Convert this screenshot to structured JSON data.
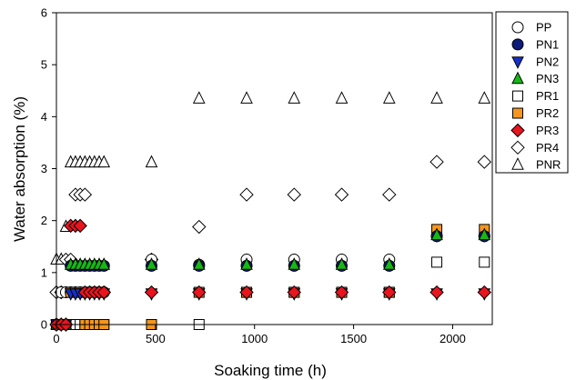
{
  "chart_data": {
    "type": "scatter",
    "xlabel": "Soaking time (h)",
    "ylabel": "Water absorption (%)",
    "xlim": [
      0,
      2200
    ],
    "ylim": [
      0,
      6
    ],
    "xticks": [
      "0",
      "500",
      "1000",
      "1500",
      "2000"
    ],
    "xtick_values": [
      0,
      500,
      1000,
      1500,
      2000
    ],
    "yticks": [
      "0",
      "1",
      "2",
      "3",
      "4",
      "5",
      "6"
    ],
    "ytick_values": [
      0,
      1,
      2,
      3,
      4,
      5,
      6
    ],
    "grid": false,
    "legend_position": "top-right, outside plot",
    "series": [
      {
        "name": "PP",
        "marker": "circle-open",
        "color": "#ffffff",
        "x": [
          0,
          24,
          48,
          72,
          96,
          120,
          144,
          168,
          192,
          216,
          240,
          480,
          720,
          960,
          1200,
          1440,
          1680,
          1920,
          2160
        ],
        "y": [
          0,
          0.62,
          0.62,
          0.62,
          0.62,
          0.62,
          0.62,
          0.62,
          0.62,
          0.62,
          0.62,
          1.25,
          1.15,
          1.25,
          1.25,
          1.25,
          1.25,
          1.7,
          1.7
        ]
      },
      {
        "name": "PN1",
        "marker": "circle-filled",
        "color": "#0d1b7a",
        "x": [
          0,
          24,
          48,
          72,
          96,
          120,
          144,
          168,
          192,
          216,
          240,
          480,
          720,
          960,
          1200,
          1440,
          1680,
          1920,
          2160
        ],
        "y": [
          0,
          0,
          0,
          1.13,
          1.13,
          1.13,
          1.13,
          1.13,
          1.13,
          1.13,
          1.13,
          1.13,
          1.13,
          1.13,
          1.13,
          1.13,
          1.13,
          1.7,
          1.7
        ]
      },
      {
        "name": "PN2",
        "marker": "triangle-down",
        "color": "#1530c8",
        "x": [
          0,
          24,
          48,
          72,
          96,
          120,
          144,
          168,
          192,
          216,
          240,
          480,
          720,
          960,
          1200,
          1440,
          1680,
          1920,
          2160
        ],
        "y": [
          0,
          0,
          0,
          0.6,
          0.6,
          0.6,
          0.6,
          0.6,
          0.6,
          0.6,
          0.6,
          0.6,
          0.6,
          0.6,
          0.6,
          0.6,
          0.6,
          0.6,
          0.6
        ]
      },
      {
        "name": "PN3",
        "marker": "triangle-up",
        "color": "#16b816",
        "x": [
          0,
          24,
          48,
          72,
          96,
          120,
          144,
          168,
          192,
          216,
          240,
          480,
          720,
          960,
          1200,
          1440,
          1680,
          1920,
          2160
        ],
        "y": [
          0,
          0,
          0,
          1.15,
          1.15,
          1.15,
          1.15,
          1.15,
          1.15,
          1.15,
          1.15,
          1.15,
          1.15,
          1.15,
          1.15,
          1.15,
          1.15,
          1.72,
          1.72
        ]
      },
      {
        "name": "PR1",
        "marker": "square-open",
        "color": "#ffffff",
        "x": [
          0,
          24,
          48,
          72,
          96,
          120,
          144,
          168,
          192,
          216,
          240,
          480,
          720,
          960,
          1200,
          1440,
          1680,
          1920,
          2160
        ],
        "y": [
          0,
          0,
          0,
          0,
          0,
          0,
          0,
          0,
          0,
          0,
          0,
          0,
          0,
          0.62,
          0.62,
          0.62,
          0.62,
          1.2,
          1.2
        ]
      },
      {
        "name": "PR2",
        "marker": "square-filled",
        "color": "#f5961e",
        "x": [
          0,
          24,
          48,
          72,
          96,
          120,
          144,
          168,
          192,
          216,
          240,
          480,
          720,
          960,
          1200,
          1440,
          1680,
          1920,
          2160
        ],
        "y": [
          0,
          0,
          0,
          0.62,
          0.62,
          0.62,
          0,
          0,
          0,
          0,
          0,
          0,
          0.62,
          0.62,
          0.62,
          0.62,
          0.62,
          1.83,
          1.83
        ]
      },
      {
        "name": "PR3",
        "marker": "diamond-filled",
        "color": "#e8141e",
        "x": [
          0,
          24,
          48,
          72,
          96,
          120,
          144,
          168,
          192,
          216,
          240,
          480,
          720,
          960,
          1200,
          1440,
          1680,
          1920,
          2160
        ],
        "y": [
          0,
          0,
          0,
          1.9,
          1.9,
          1.9,
          0.62,
          0.62,
          0.62,
          0.62,
          0.62,
          0.62,
          0.62,
          0.62,
          0.62,
          0.62,
          0.62,
          0.62,
          0.62
        ]
      },
      {
        "name": "PR4",
        "marker": "diamond-open",
        "color": "#ffffff",
        "x": [
          0,
          24,
          48,
          72,
          96,
          120,
          144,
          168,
          192,
          216,
          240,
          480,
          720,
          960,
          1200,
          1440,
          1680,
          1920,
          2160
        ],
        "y": [
          0.62,
          0.62,
          1.25,
          1.25,
          2.5,
          2.5,
          2.5,
          0.62,
          0.62,
          0.62,
          0.62,
          1.25,
          1.88,
          2.5,
          2.5,
          2.5,
          2.5,
          3.13,
          3.13
        ]
      },
      {
        "name": "PNR",
        "marker": "triangle-up-open",
        "color": "#ffffff",
        "x": [
          0,
          24,
          48,
          72,
          96,
          120,
          144,
          168,
          192,
          216,
          240,
          480,
          720,
          960,
          1200,
          1440,
          1680,
          1920,
          2160
        ],
        "y": [
          1.25,
          1.25,
          1.88,
          3.12,
          3.12,
          3.12,
          3.12,
          3.12,
          3.12,
          3.12,
          3.12,
          3.12,
          4.35,
          4.35,
          4.35,
          4.35,
          4.35,
          4.35,
          4.35
        ]
      }
    ]
  }
}
